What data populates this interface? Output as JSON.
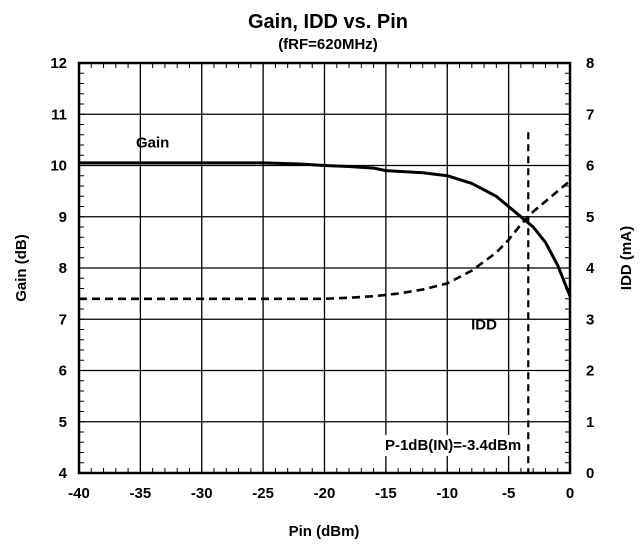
{
  "chart_data": {
    "type": "line",
    "title": "Gain, IDD vs. Pin",
    "subtitle": "(fRF=620MHz)",
    "xlabel": "Pin (dBm)",
    "ylabel_left": "Gain (dB)",
    "ylabel_right": "IDD (mA)",
    "xlim": [
      -40,
      0
    ],
    "ylim_left": [
      4,
      12
    ],
    "ylim_right": [
      0,
      8
    ],
    "x_ticks": [
      "-40",
      "-35",
      "-30",
      "-25",
      "-20",
      "-15",
      "-10",
      "-5",
      "0"
    ],
    "y_left_ticks": [
      "4",
      "5",
      "6",
      "7",
      "8",
      "9",
      "10",
      "11",
      "12"
    ],
    "y_right_ticks": [
      "0",
      "1",
      "2",
      "3",
      "4",
      "5",
      "6",
      "7",
      "8"
    ],
    "grid": true,
    "series": [
      {
        "name": "Gain",
        "axis": "left",
        "style": "solid",
        "x": [
          -40,
          -35,
          -30,
          -25,
          -22,
          -20,
          -18,
          -16,
          -15,
          -12,
          -10,
          -8,
          -6,
          -5,
          -4,
          -3,
          -2,
          -1,
          -0.5,
          0
        ],
        "y": [
          10.05,
          10.05,
          10.05,
          10.05,
          10.03,
          10.0,
          9.98,
          9.95,
          9.9,
          9.86,
          9.8,
          9.65,
          9.4,
          9.2,
          9.0,
          8.8,
          8.5,
          8.05,
          7.75,
          7.45
        ]
      },
      {
        "name": "IDD",
        "axis": "right",
        "style": "dashed",
        "x": [
          -40,
          -35,
          -30,
          -25,
          -20,
          -18,
          -16,
          -14,
          -12,
          -10,
          -8,
          -6,
          -5,
          -4,
          -3,
          -2,
          -1,
          0
        ],
        "y": [
          3.4,
          3.4,
          3.4,
          3.4,
          3.4,
          3.42,
          3.45,
          3.5,
          3.58,
          3.7,
          3.95,
          4.3,
          4.55,
          4.85,
          5.1,
          5.3,
          5.5,
          5.7
        ]
      }
    ],
    "marker_line": {
      "x": -3.4,
      "style": "dashed",
      "label": "P-1dB(IN)=-3.4dBm"
    },
    "annotations": [
      {
        "text": "Gain",
        "x": -34,
        "y_left": 10.35
      },
      {
        "text": "IDD",
        "x": -7,
        "y_left": 6.8
      }
    ]
  }
}
